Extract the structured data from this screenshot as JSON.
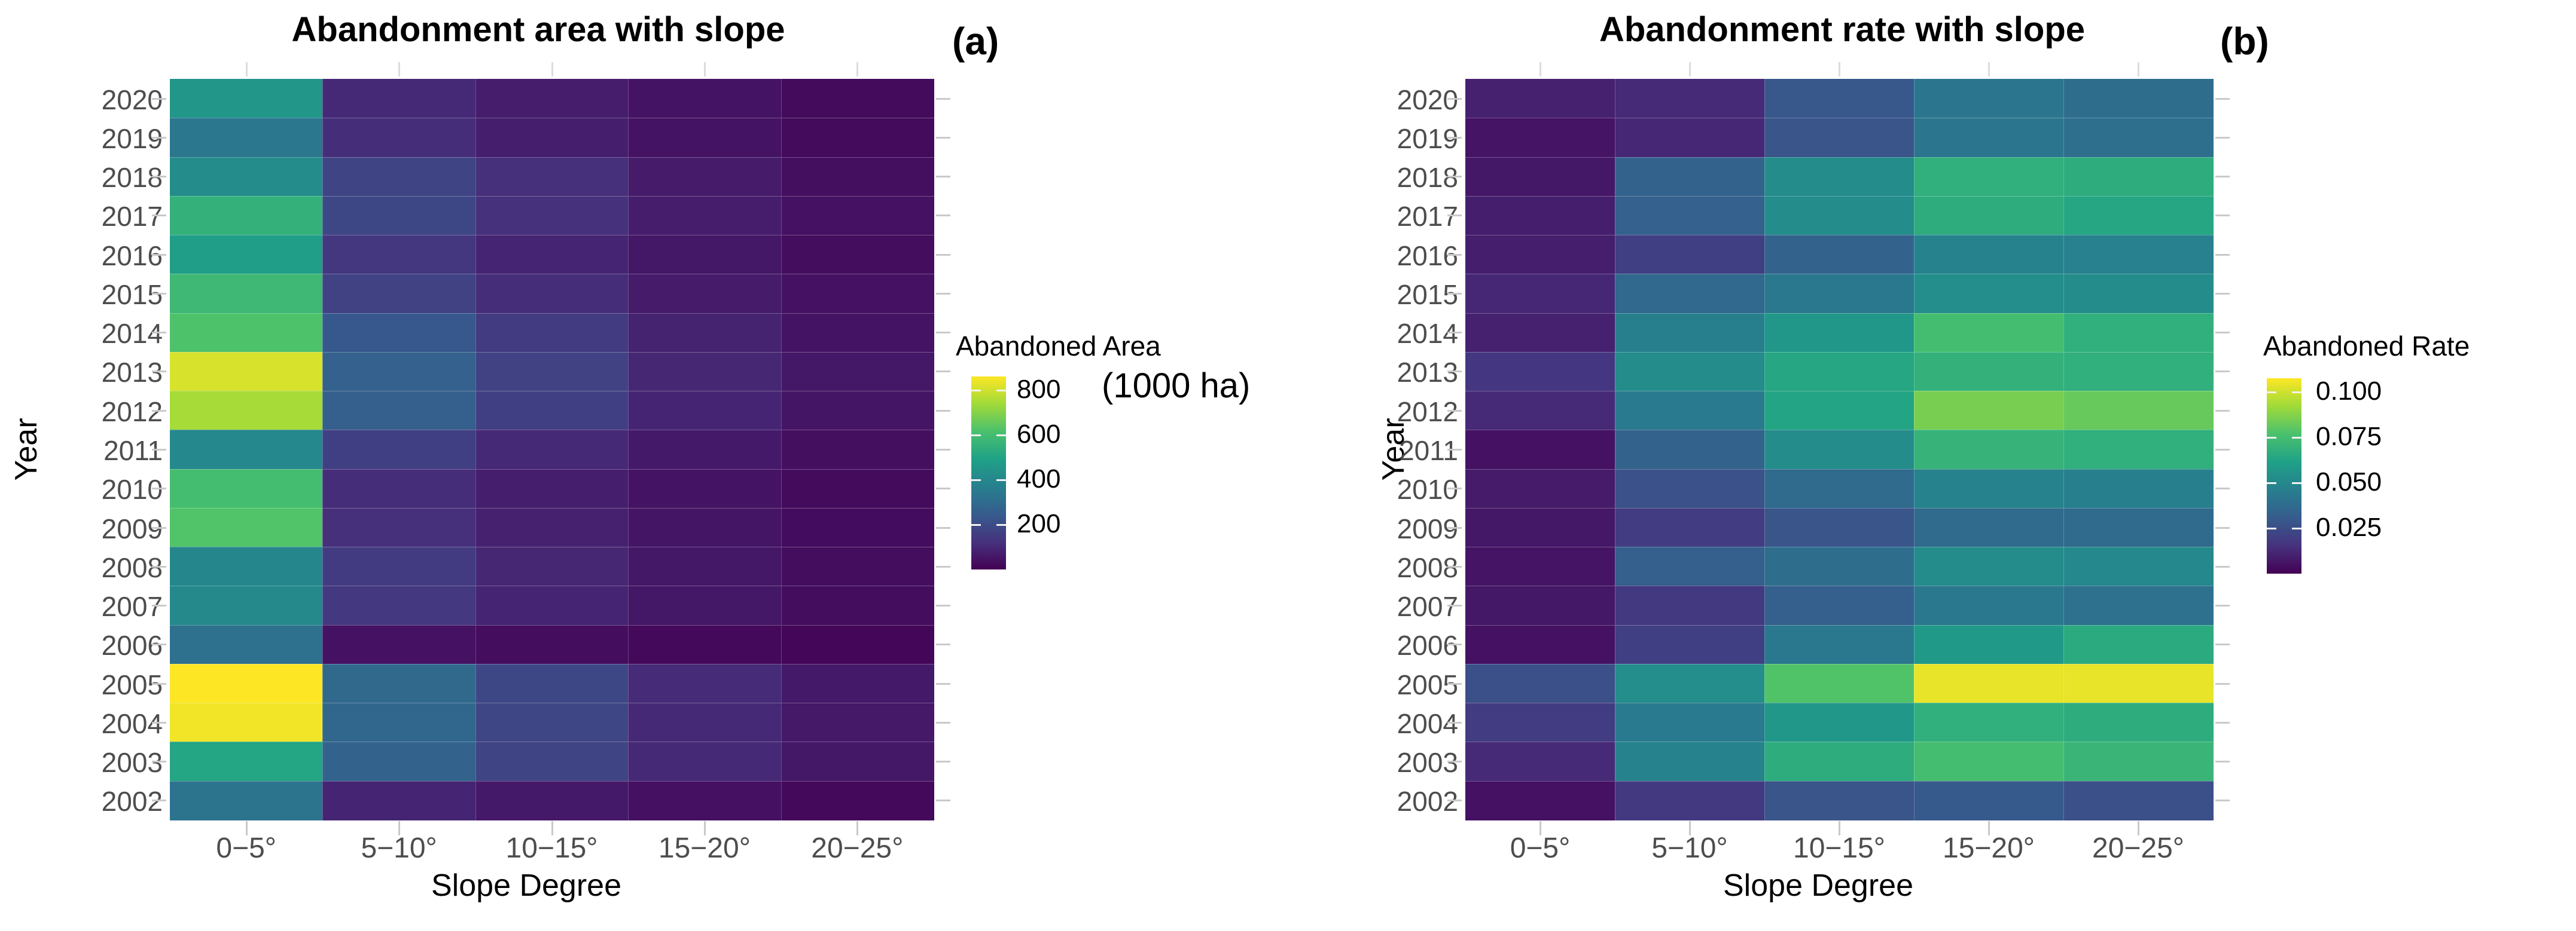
{
  "figure": {
    "background": "#ffffff",
    "description": "Two viridis heatmaps of cropland abandonment by year and slope degree"
  },
  "colors": {
    "viridis_stops": [
      "#440154",
      "#46327e",
      "#365c8d",
      "#277f8e",
      "#1fa187",
      "#4ac16d",
      "#a0da39",
      "#fde725"
    ],
    "axis_text": "#4d4d4d",
    "title_text": "#000000",
    "tick_mark": "#c9c9c9",
    "top_tick_mark": "#dcdcdc"
  },
  "chart_data": [
    {
      "type": "heatmap",
      "panel_tag": "(a)",
      "title": "Abandonment area with slope",
      "xlabel": "Slope Degree",
      "ylabel": "Year",
      "colormap": "viridis",
      "grid": false,
      "x_categories": [
        "0−5°",
        "5−10°",
        "10−15°",
        "15−20°",
        "20−25°"
      ],
      "y_categories": [
        "2020",
        "2019",
        "2018",
        "2017",
        "2016",
        "2015",
        "2014",
        "2013",
        "2012",
        "2011",
        "2010",
        "2009",
        "2008",
        "2007",
        "2006",
        "2005",
        "2004",
        "2003",
        "2002"
      ],
      "values": [
        [
          450,
          100,
          70,
          45,
          25
        ],
        [
          340,
          110,
          75,
          45,
          25
        ],
        [
          420,
          175,
          115,
          65,
          35
        ],
        [
          550,
          185,
          120,
          70,
          40
        ],
        [
          480,
          135,
          90,
          55,
          30
        ],
        [
          580,
          170,
          110,
          65,
          40
        ],
        [
          620,
          235,
          150,
          85,
          45
        ],
        [
          810,
          265,
          170,
          95,
          55
        ],
        [
          745,
          255,
          160,
          90,
          50
        ],
        [
          400,
          160,
          100,
          60,
          35
        ],
        [
          600,
          110,
          75,
          45,
          25
        ],
        [
          625,
          115,
          80,
          50,
          28
        ],
        [
          395,
          150,
          95,
          55,
          30
        ],
        [
          405,
          140,
          90,
          55,
          30
        ],
        [
          320,
          40,
          30,
          20,
          12
        ],
        [
          860,
          290,
          185,
          105,
          60
        ],
        [
          845,
          285,
          180,
          100,
          58
        ],
        [
          505,
          270,
          175,
          100,
          55
        ],
        [
          330,
          90,
          60,
          38,
          20
        ]
      ],
      "legend": {
        "title": "Abandoned Area",
        "subtitle": "(1000 ha)",
        "tick_labels": [
          "800",
          "600",
          "400",
          "200"
        ],
        "tick_values": [
          800,
          600,
          400,
          200
        ],
        "domain": [
          0,
          860
        ],
        "position": "right"
      }
    },
    {
      "type": "heatmap",
      "panel_tag": "(b)",
      "title": "Abandonment rate with slope",
      "xlabel": "Slope Degree",
      "ylabel": "Year",
      "colormap": "viridis",
      "grid": false,
      "x_categories": [
        "0−5°",
        "5−10°",
        "10−15°",
        "15−20°",
        "20−25°"
      ],
      "y_categories": [
        "2020",
        "2019",
        "2018",
        "2017",
        "2016",
        "2015",
        "2014",
        "2013",
        "2012",
        "2011",
        "2010",
        "2009",
        "2008",
        "2007",
        "2006",
        "2005",
        "2004",
        "2003",
        "2002"
      ],
      "values": [
        [
          0.01,
          0.013,
          0.029,
          0.042,
          0.038
        ],
        [
          0.006,
          0.012,
          0.028,
          0.042,
          0.039
        ],
        [
          0.007,
          0.034,
          0.052,
          0.068,
          0.067
        ],
        [
          0.009,
          0.033,
          0.052,
          0.067,
          0.064
        ],
        [
          0.009,
          0.02,
          0.034,
          0.048,
          0.047
        ],
        [
          0.012,
          0.036,
          0.043,
          0.053,
          0.052
        ],
        [
          0.01,
          0.046,
          0.057,
          0.075,
          0.068
        ],
        [
          0.017,
          0.052,
          0.064,
          0.069,
          0.068
        ],
        [
          0.013,
          0.044,
          0.063,
          0.085,
          0.082
        ],
        [
          0.005,
          0.034,
          0.052,
          0.07,
          0.068
        ],
        [
          0.008,
          0.027,
          0.037,
          0.048,
          0.046
        ],
        [
          0.007,
          0.019,
          0.028,
          0.037,
          0.037
        ],
        [
          0.006,
          0.032,
          0.038,
          0.052,
          0.05
        ],
        [
          0.007,
          0.018,
          0.032,
          0.043,
          0.04
        ],
        [
          0.005,
          0.02,
          0.043,
          0.058,
          0.066
        ],
        [
          0.026,
          0.053,
          0.078,
          0.104,
          0.104
        ],
        [
          0.019,
          0.044,
          0.057,
          0.068,
          0.067
        ],
        [
          0.013,
          0.048,
          0.067,
          0.075,
          0.071
        ],
        [
          0.005,
          0.018,
          0.028,
          0.03,
          0.026
        ]
      ],
      "legend": {
        "title": "Abandoned Rate",
        "subtitle": "",
        "tick_labels": [
          "0.100",
          "0.075",
          "0.050",
          "0.025"
        ],
        "tick_values": [
          0.1,
          0.075,
          0.05,
          0.025
        ],
        "domain": [
          0,
          0.1076
        ],
        "position": "right"
      }
    }
  ]
}
